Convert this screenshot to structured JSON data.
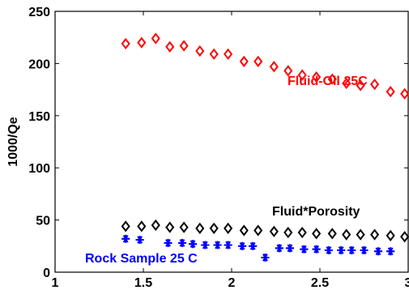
{
  "chart_data": {
    "type": "scatter",
    "title": "",
    "xlabel": "",
    "ylabel": "1000/Qe",
    "xlim": [
      1,
      3
    ],
    "ylim": [
      0,
      250
    ],
    "x_ticks": [
      "1",
      "1.5",
      "2",
      "2.5",
      "3"
    ],
    "y_ticks": [
      "0",
      "50",
      "100",
      "150",
      "200",
      "250"
    ],
    "grid": false,
    "series": [
      {
        "name": "Fluid-Oil 25C",
        "marker": "diamond",
        "color": "#ff0000",
        "x": [
          1.4,
          1.49,
          1.57,
          1.65,
          1.73,
          1.82,
          1.9,
          1.98,
          2.07,
          2.15,
          2.24,
          2.32,
          2.4,
          2.48,
          2.57,
          2.65,
          2.73,
          2.81,
          2.9,
          2.98
        ],
        "y": [
          219,
          220,
          224,
          216,
          217,
          212,
          209,
          209,
          202,
          202,
          197,
          193,
          189,
          187,
          185,
          181,
          179,
          180,
          173,
          171
        ]
      },
      {
        "name": "Fluid*Porosity",
        "marker": "diamond",
        "color": "#000000",
        "x": [
          1.4,
          1.49,
          1.57,
          1.65,
          1.73,
          1.82,
          1.9,
          1.98,
          2.07,
          2.15,
          2.24,
          2.32,
          2.4,
          2.48,
          2.57,
          2.65,
          2.73,
          2.81,
          2.9,
          2.98
        ],
        "y": [
          44,
          44,
          45,
          43,
          43,
          42,
          42,
          42,
          40,
          40,
          39,
          38,
          38,
          37,
          37,
          36,
          36,
          36,
          35,
          34
        ]
      },
      {
        "name": "Rock Sample 25 C",
        "marker": "asterisk",
        "color": "#0000ff",
        "x": [
          1.4,
          1.48,
          1.64,
          1.72,
          1.78,
          1.85,
          1.92,
          1.98,
          2.06,
          2.12,
          2.19,
          2.27,
          2.33,
          2.41,
          2.48,
          2.55,
          2.62,
          2.68,
          2.75,
          2.83,
          2.9
        ],
        "y": [
          32,
          31,
          28,
          28,
          27,
          26,
          26,
          26,
          25,
          25,
          14,
          23,
          23,
          22,
          22,
          21,
          21,
          21,
          21,
          20,
          20
        ]
      }
    ],
    "annotations": [
      {
        "text": "Fluid-Oil 25C",
        "color": "#ff0000"
      },
      {
        "text": "Fluid*Porosity",
        "color": "#000000"
      },
      {
        "text": "Rock Sample 25 C",
        "color": "#0000ff"
      }
    ]
  }
}
